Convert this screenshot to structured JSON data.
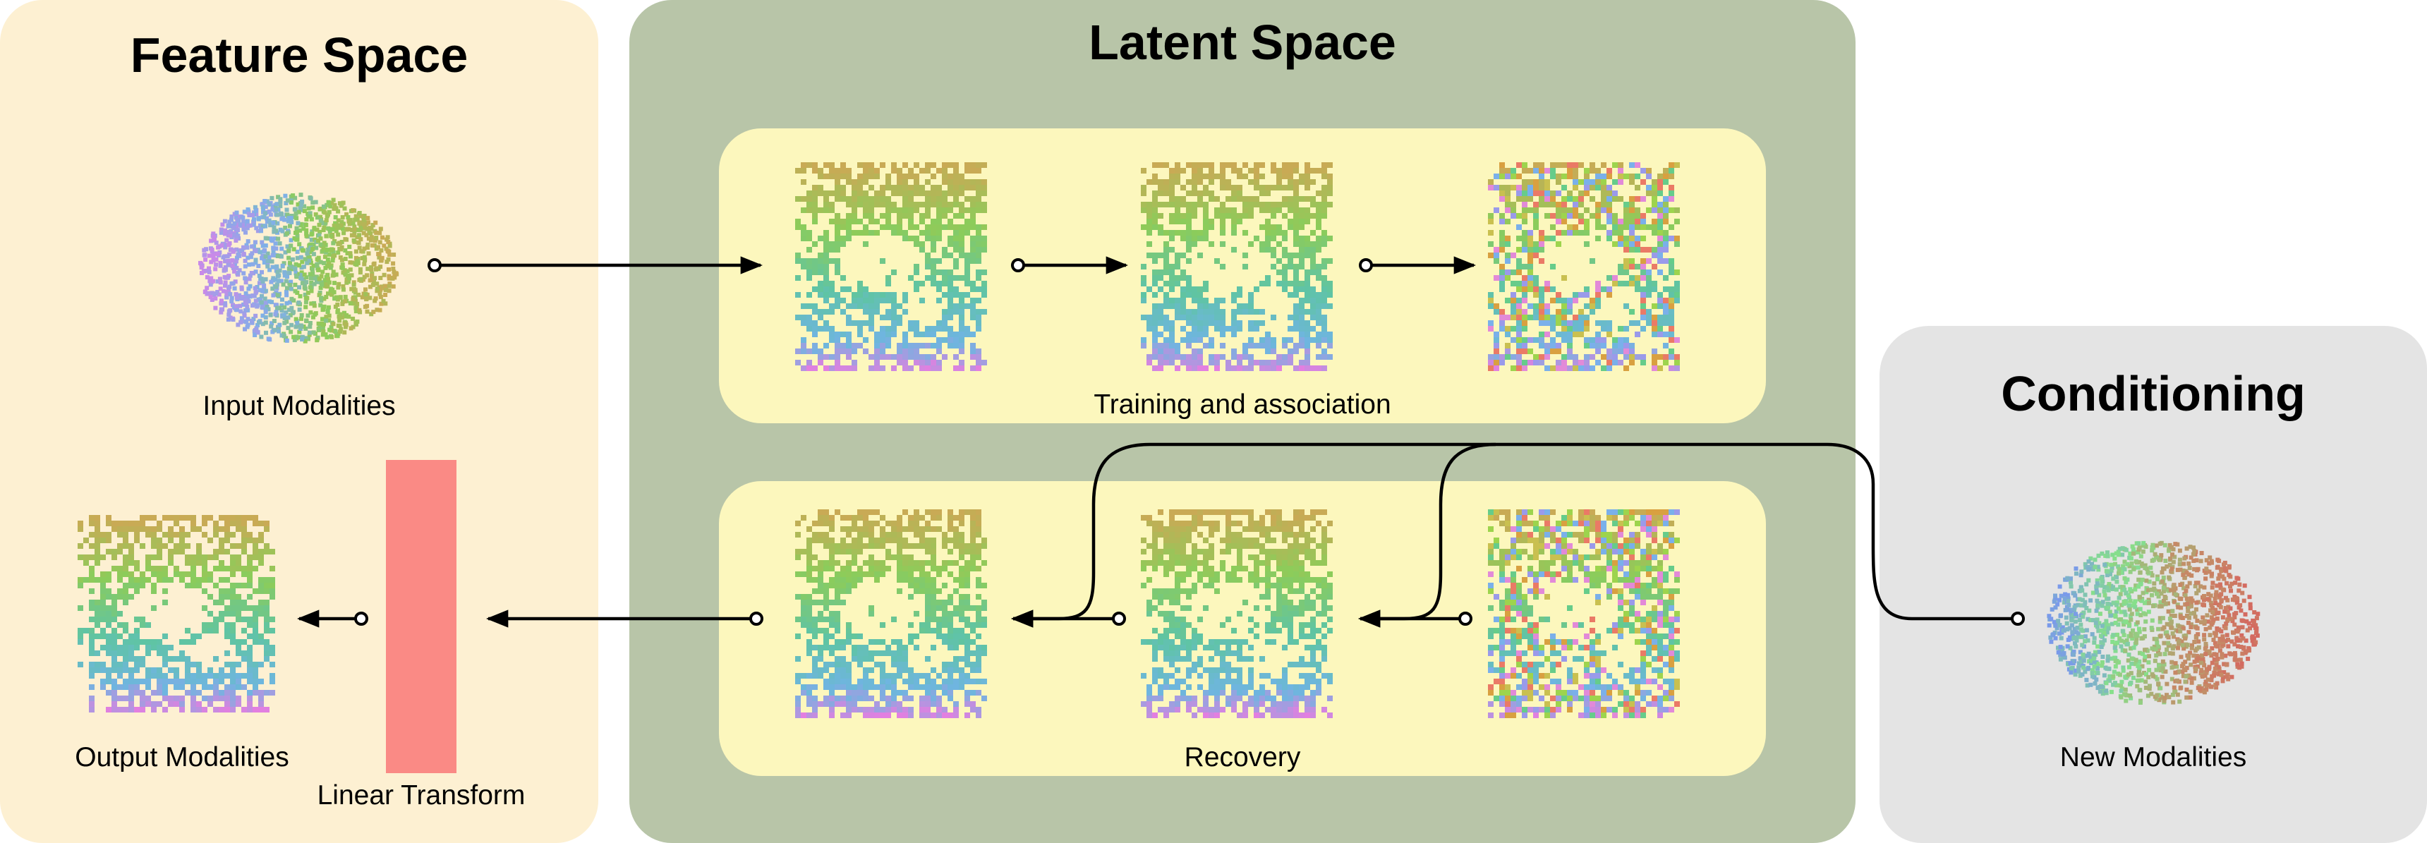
{
  "titles": {
    "feature_space": "Feature Space",
    "latent_space": "Latent Space",
    "conditioning": "Conditioning"
  },
  "labels": {
    "input_modalities": "Input Modalities",
    "output_modalities": "Output Modalities",
    "linear_transform": "Linear Transform",
    "training_and_association": "Training and association",
    "recovery": "Recovery",
    "new_modalities": "New Modalities"
  },
  "colors": {
    "feature_panel": "#fdf0d2",
    "latent_panel": "#b8c5a8",
    "inner_box": "#fcf7bd",
    "conditioning_panel": "#e4e4e4",
    "linear_transform_bar": "#fa8a85"
  }
}
